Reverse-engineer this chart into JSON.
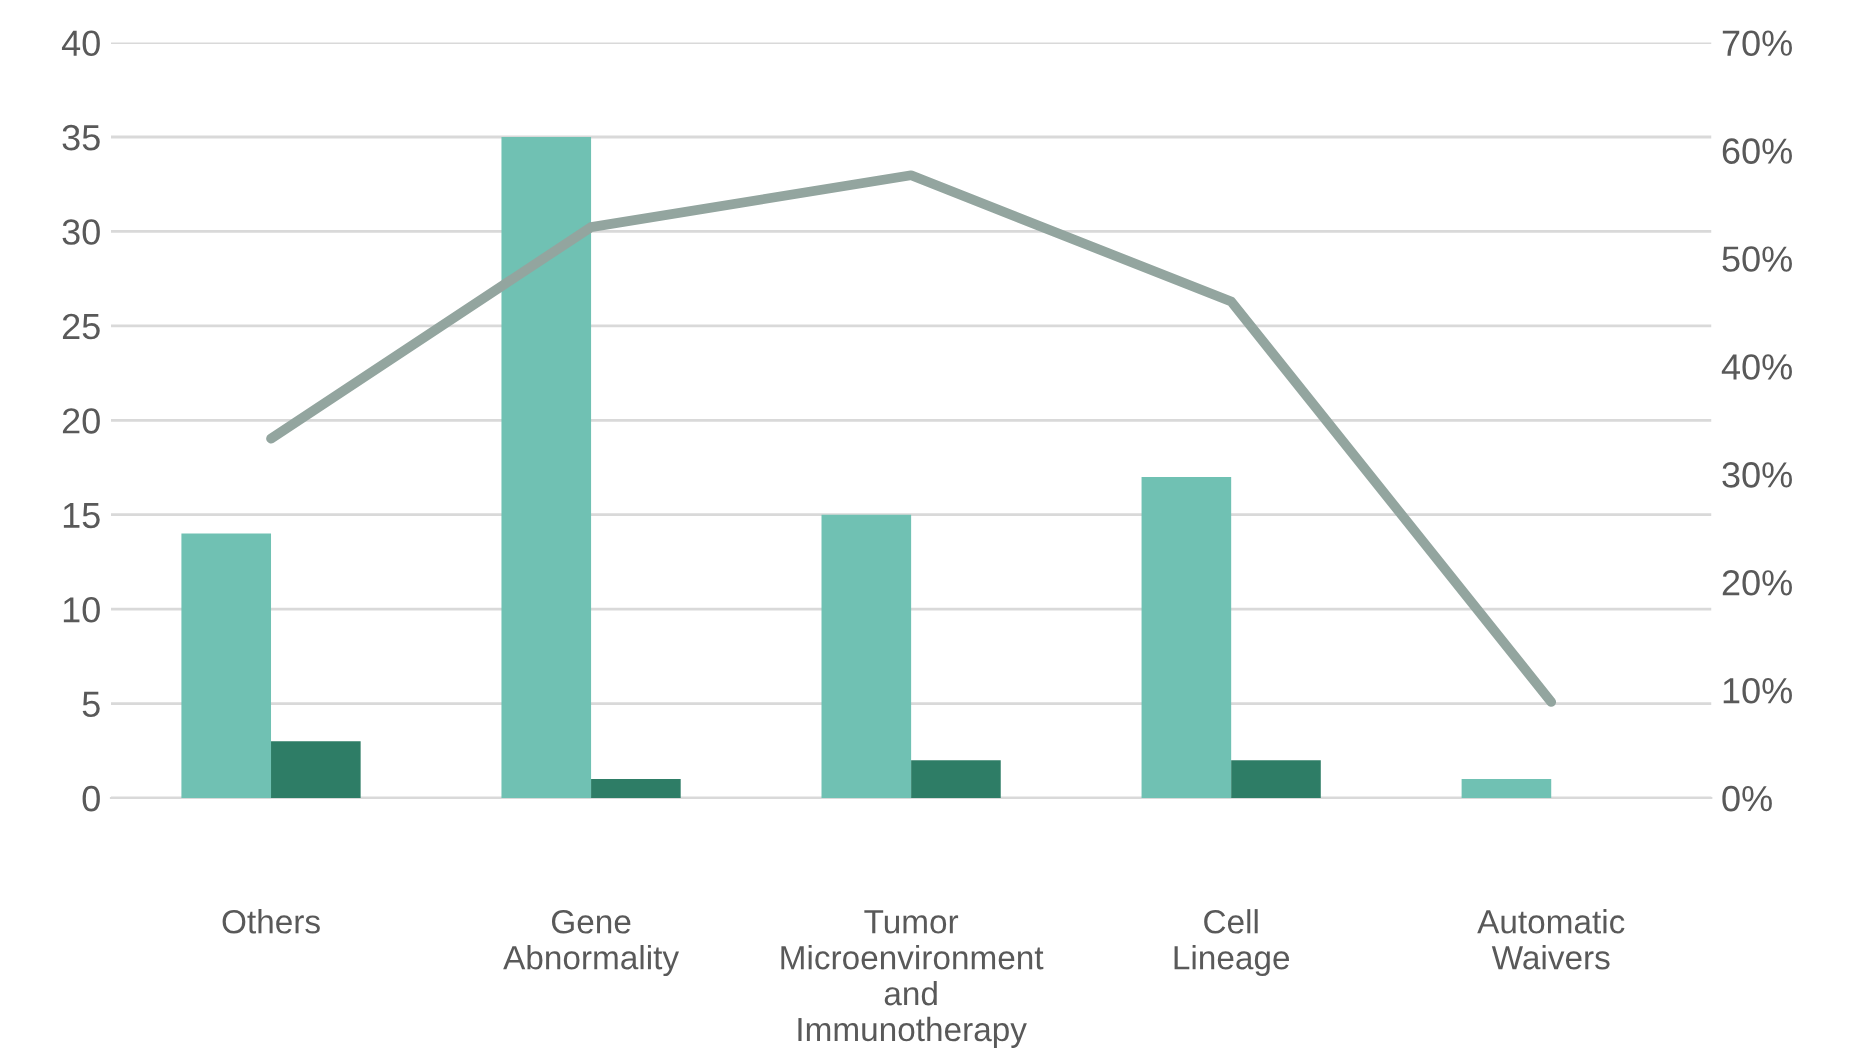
{
  "chart_data": {
    "type": "bar",
    "categories": [
      "Others",
      "Gene Abnormality",
      "Tumor Microenvironment and Immunotherapy",
      "Cell Lineage",
      "Automatic Waivers"
    ],
    "series": [
      {
        "color": "#70c1b3",
        "values": [
          14,
          35,
          15,
          17,
          1
        ]
      },
      {
        "color": "#2e7d66",
        "values": [
          3,
          1,
          2,
          2,
          null
        ]
      },
      {
        "type": "line",
        "axis": "y2",
        "color": "#93a59f",
        "values": [
          33.3,
          52.9,
          57.7,
          46.0,
          8.9
        ]
      }
    ],
    "ylim": [
      0,
      40
    ],
    "yticks": [
      0,
      5,
      10,
      15,
      20,
      25,
      30,
      35,
      40
    ],
    "y2lim": [
      0,
      70
    ],
    "y2ticks": [
      {
        "value": 0,
        "label": "0%"
      },
      {
        "value": 10,
        "label": "10%"
      },
      {
        "value": 20,
        "label": "20%"
      },
      {
        "value": 30,
        "label": "30%"
      },
      {
        "value": 40,
        "label": "40%"
      },
      {
        "value": 50,
        "label": "50%"
      },
      {
        "value": 60,
        "label": "60%"
      },
      {
        "value": 70,
        "label": "70%"
      }
    ],
    "grid": "y",
    "marker": "none",
    "line_style": "solid"
  }
}
